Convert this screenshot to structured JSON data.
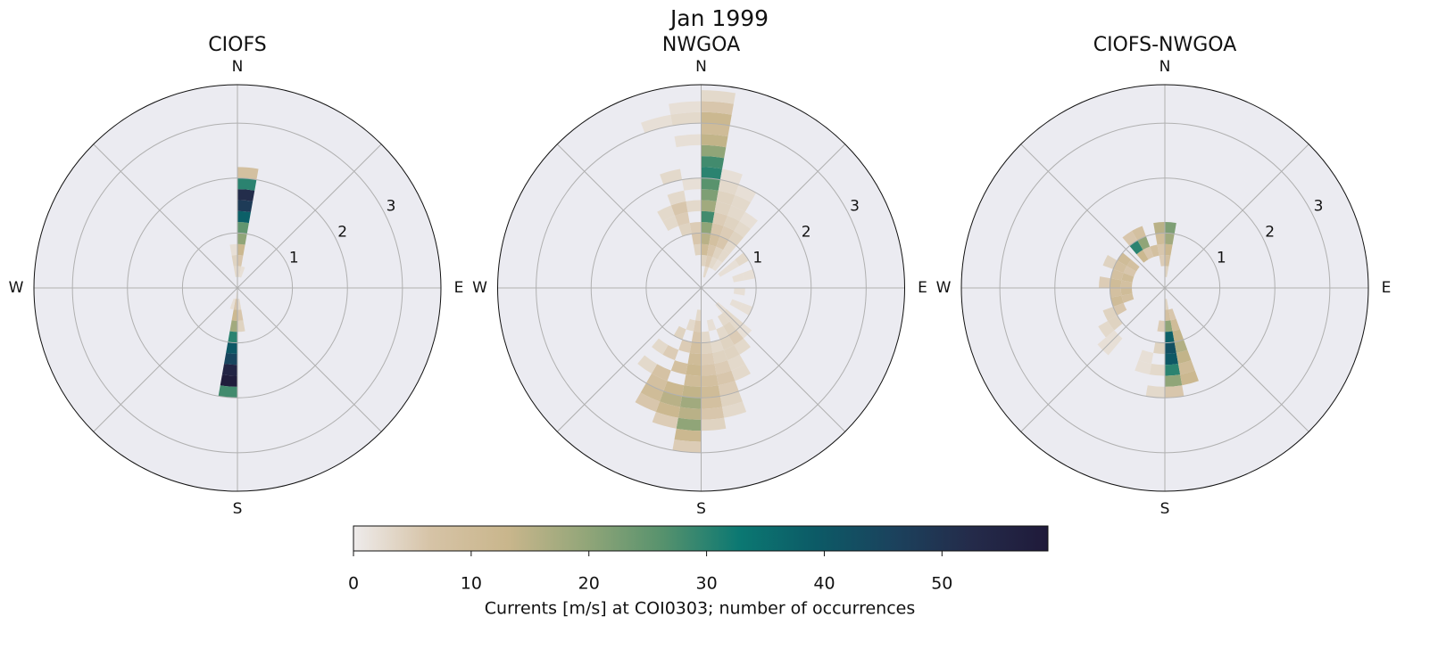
{
  "title": "Jan 1999",
  "chart_data": [
    {
      "type": "polar-histogram",
      "title": "CIOFS",
      "rlim": [
        0,
        3.7
      ],
      "rticks": [
        1,
        2,
        3
      ],
      "thetagrid": [
        0,
        45,
        90,
        135,
        180,
        225,
        270,
        315
      ],
      "thetalabels": [
        {
          "value": 0,
          "label": "N"
        },
        {
          "value": 90,
          "label": "E"
        },
        {
          "value": 180,
          "label": "S"
        },
        {
          "value": 270,
          "label": "W"
        }
      ],
      "direction_bin": 10,
      "speed_bin": 0.2,
      "cells": [
        [
          0,
          0.2,
          3
        ],
        [
          0,
          0.4,
          6
        ],
        [
          0,
          0.6,
          12
        ],
        [
          0,
          0.8,
          20
        ],
        [
          0,
          1.0,
          25
        ],
        [
          0,
          1.2,
          38
        ],
        [
          0,
          1.4,
          48
        ],
        [
          0,
          1.6,
          52
        ],
        [
          0,
          1.8,
          30
        ],
        [
          0,
          2.0,
          8
        ],
        [
          350,
          0.2,
          3
        ],
        [
          350,
          0.4,
          4
        ],
        [
          350,
          0.6,
          2
        ],
        [
          10,
          0.2,
          2
        ],
        [
          180,
          0.0,
          2
        ],
        [
          180,
          0.2,
          6
        ],
        [
          180,
          0.4,
          12
        ],
        [
          180,
          0.6,
          18
        ],
        [
          180,
          0.8,
          30
        ],
        [
          180,
          1.0,
          40
        ],
        [
          180,
          1.2,
          45
        ],
        [
          180,
          1.4,
          55
        ],
        [
          180,
          1.6,
          58
        ],
        [
          180,
          1.8,
          28
        ],
        [
          170,
          0.2,
          3
        ],
        [
          170,
          0.4,
          6
        ],
        [
          170,
          0.6,
          4
        ],
        [
          190,
          0.2,
          2
        ]
      ]
    },
    {
      "type": "polar-histogram",
      "title": "NWGOA",
      "rlim": [
        0,
        3.7
      ],
      "rticks": [
        1,
        2,
        3
      ],
      "thetagrid": [
        0,
        45,
        90,
        135,
        180,
        225,
        270,
        315
      ],
      "thetalabels": [
        {
          "value": 0,
          "label": "N"
        },
        {
          "value": 90,
          "label": "E"
        },
        {
          "value": 180,
          "label": "S"
        },
        {
          "value": 270,
          "label": "W"
        }
      ],
      "direction_bin": 10,
      "speed_bin": 0.2,
      "cells": [
        [
          0,
          0.4,
          4
        ],
        [
          0,
          0.6,
          10
        ],
        [
          0,
          0.8,
          15
        ],
        [
          0,
          1.0,
          20
        ],
        [
          0,
          1.2,
          28
        ],
        [
          0,
          1.4,
          18
        ],
        [
          0,
          1.6,
          22
        ],
        [
          0,
          1.8,
          26
        ],
        [
          0,
          2.0,
          30
        ],
        [
          0,
          2.2,
          28
        ],
        [
          0,
          2.4,
          20
        ],
        [
          0,
          2.6,
          14
        ],
        [
          0,
          2.8,
          10
        ],
        [
          0,
          3.0,
          12
        ],
        [
          0,
          3.2,
          6
        ],
        [
          0,
          3.4,
          3
        ],
        [
          350,
          0.6,
          4
        ],
        [
          350,
          0.8,
          6
        ],
        [
          350,
          1.0,
          5
        ],
        [
          350,
          1.4,
          3
        ],
        [
          350,
          1.8,
          2
        ],
        [
          350,
          2.6,
          2
        ],
        [
          350,
          3.0,
          3
        ],
        [
          350,
          3.2,
          2
        ],
        [
          340,
          1.0,
          4
        ],
        [
          340,
          1.2,
          5
        ],
        [
          340,
          1.4,
          6
        ],
        [
          340,
          1.6,
          3
        ],
        [
          340,
          2.0,
          3
        ],
        [
          340,
          3.0,
          2
        ],
        [
          330,
          1.2,
          3
        ],
        [
          330,
          1.4,
          3
        ],
        [
          10,
          0.2,
          3
        ],
        [
          10,
          0.4,
          5
        ],
        [
          10,
          0.6,
          6
        ],
        [
          10,
          0.8,
          8
        ],
        [
          10,
          1.0,
          6
        ],
        [
          10,
          1.2,
          5
        ],
        [
          10,
          1.4,
          4
        ],
        [
          10,
          1.6,
          4
        ],
        [
          10,
          1.8,
          3
        ],
        [
          10,
          2.0,
          2
        ],
        [
          20,
          0.4,
          3
        ],
        [
          20,
          0.6,
          4
        ],
        [
          20,
          0.8,
          6
        ],
        [
          20,
          1.0,
          5
        ],
        [
          20,
          1.2,
          4
        ],
        [
          20,
          1.4,
          3
        ],
        [
          20,
          1.6,
          3
        ],
        [
          20,
          1.8,
          2
        ],
        [
          30,
          0.4,
          2
        ],
        [
          30,
          0.6,
          3
        ],
        [
          30,
          0.8,
          3
        ],
        [
          30,
          1.0,
          4
        ],
        [
          30,
          1.2,
          3
        ],
        [
          30,
          1.4,
          2
        ],
        [
          50,
          0.4,
          2
        ],
        [
          50,
          0.6,
          2
        ],
        [
          50,
          0.8,
          3
        ],
        [
          70,
          0.6,
          2
        ],
        [
          70,
          0.8,
          2
        ],
        [
          90,
          0.6,
          2
        ],
        [
          110,
          0.6,
          2
        ],
        [
          110,
          0.8,
          2
        ],
        [
          130,
          0.4,
          2
        ],
        [
          130,
          0.6,
          3
        ],
        [
          130,
          0.8,
          3
        ],
        [
          130,
          1.0,
          2
        ],
        [
          140,
          0.6,
          3
        ],
        [
          140,
          0.8,
          4
        ],
        [
          140,
          1.0,
          5
        ],
        [
          140,
          1.2,
          3
        ],
        [
          180,
          0.4,
          3
        ],
        [
          180,
          0.6,
          5
        ],
        [
          180,
          0.8,
          6
        ],
        [
          180,
          1.0,
          8
        ],
        [
          180,
          1.2,
          10
        ],
        [
          180,
          1.4,
          12
        ],
        [
          180,
          1.6,
          10
        ],
        [
          180,
          1.8,
          14
        ],
        [
          180,
          2.0,
          18
        ],
        [
          180,
          2.2,
          15
        ],
        [
          180,
          2.4,
          20
        ],
        [
          180,
          2.6,
          12
        ],
        [
          180,
          2.8,
          5
        ],
        [
          170,
          0.8,
          3
        ],
        [
          170,
          1.0,
          4
        ],
        [
          170,
          1.2,
          5
        ],
        [
          170,
          1.4,
          6
        ],
        [
          170,
          1.6,
          8
        ],
        [
          170,
          1.8,
          10
        ],
        [
          170,
          2.0,
          8
        ],
        [
          170,
          2.2,
          6
        ],
        [
          170,
          2.4,
          4
        ],
        [
          160,
          0.6,
          2
        ],
        [
          160,
          1.0,
          3
        ],
        [
          160,
          1.2,
          4
        ],
        [
          160,
          1.4,
          5
        ],
        [
          160,
          1.6,
          6
        ],
        [
          160,
          1.8,
          5
        ],
        [
          160,
          2.0,
          4
        ],
        [
          160,
          2.2,
          3
        ],
        [
          150,
          0.8,
          3
        ],
        [
          150,
          1.0,
          4
        ],
        [
          150,
          1.2,
          4
        ],
        [
          150,
          1.4,
          3
        ],
        [
          150,
          1.6,
          3
        ],
        [
          190,
          0.6,
          3
        ],
        [
          190,
          1.0,
          5
        ],
        [
          190,
          1.4,
          8
        ],
        [
          190,
          1.8,
          12
        ],
        [
          190,
          2.0,
          15
        ],
        [
          190,
          2.2,
          12
        ],
        [
          190,
          2.4,
          5
        ],
        [
          200,
          0.8,
          4
        ],
        [
          200,
          1.2,
          5
        ],
        [
          200,
          1.6,
          7
        ],
        [
          200,
          1.8,
          8
        ],
        [
          200,
          2.0,
          10
        ],
        [
          200,
          2.2,
          6
        ],
        [
          210,
          1.2,
          3
        ],
        [
          210,
          1.6,
          3
        ]
      ]
    },
    {
      "type": "polar-histogram",
      "title": "CIOFS-NWGOA",
      "rlim": [
        0,
        3.7
      ],
      "rticks": [
        1,
        2,
        3
      ],
      "thetagrid": [
        0,
        45,
        90,
        135,
        180,
        225,
        270,
        315
      ],
      "thetalabels": [
        {
          "value": 0,
          "label": "N"
        },
        {
          "value": 90,
          "label": "E"
        },
        {
          "value": 180,
          "label": "S"
        },
        {
          "value": 270,
          "label": "W"
        }
      ],
      "direction_bin": 10,
      "speed_bin": 0.2,
      "cells": [
        [
          0,
          0.2,
          4
        ],
        [
          0,
          0.4,
          8
        ],
        [
          0,
          0.6,
          12
        ],
        [
          0,
          0.8,
          18
        ],
        [
          0,
          1.0,
          22
        ],
        [
          350,
          0.4,
          5
        ],
        [
          350,
          0.6,
          6
        ],
        [
          350,
          0.8,
          10
        ],
        [
          350,
          1.0,
          15
        ],
        [
          340,
          0.6,
          8
        ],
        [
          330,
          0.6,
          6
        ],
        [
          330,
          0.8,
          20
        ],
        [
          330,
          1.0,
          8
        ],
        [
          320,
          0.6,
          12
        ],
        [
          320,
          0.8,
          30
        ],
        [
          320,
          1.0,
          6
        ],
        [
          300,
          0.6,
          8
        ],
        [
          300,
          0.8,
          10
        ],
        [
          290,
          0.6,
          6
        ],
        [
          290,
          0.8,
          8
        ],
        [
          290,
          1.0,
          4
        ],
        [
          280,
          0.6,
          10
        ],
        [
          280,
          0.8,
          8
        ],
        [
          270,
          0.6,
          8
        ],
        [
          270,
          0.8,
          10
        ],
        [
          270,
          1.0,
          5
        ],
        [
          260,
          0.6,
          10
        ],
        [
          260,
          0.8,
          8
        ],
        [
          250,
          0.6,
          8
        ],
        [
          250,
          0.8,
          10
        ],
        [
          240,
          0.8,
          6
        ],
        [
          240,
          1.0,
          4
        ],
        [
          230,
          1.0,
          4
        ],
        [
          230,
          1.2,
          3
        ],
        [
          220,
          1.2,
          2
        ],
        [
          220,
          1.4,
          2
        ],
        [
          170,
          0.2,
          4
        ],
        [
          170,
          0.4,
          8
        ],
        [
          170,
          0.6,
          20
        ],
        [
          170,
          0.8,
          38
        ],
        [
          170,
          1.0,
          42
        ],
        [
          170,
          1.2,
          40
        ],
        [
          170,
          1.4,
          30
        ],
        [
          170,
          1.6,
          20
        ],
        [
          170,
          1.8,
          6
        ],
        [
          160,
          0.4,
          6
        ],
        [
          160,
          0.6,
          10
        ],
        [
          160,
          0.8,
          14
        ],
        [
          160,
          1.0,
          16
        ],
        [
          160,
          1.2,
          14
        ],
        [
          160,
          1.4,
          10
        ],
        [
          160,
          1.6,
          12
        ],
        [
          180,
          0.6,
          5
        ],
        [
          180,
          1.0,
          4
        ],
        [
          180,
          1.4,
          3
        ],
        [
          180,
          1.8,
          3
        ],
        [
          190,
          1.2,
          2
        ],
        [
          190,
          1.4,
          2
        ]
      ]
    }
  ],
  "colorbar": {
    "label": "Currents [m/s] at COI0303; number of occurrences",
    "lim": [
      0,
      59
    ],
    "ticks": [
      0,
      10,
      20,
      30,
      40,
      50
    ],
    "colors": [
      "#eeebeb",
      "#d6c3a6",
      "#c9b68c",
      "#93a679",
      "#57926d",
      "#0b7872",
      "#0c5a66",
      "#1b425d",
      "#242b4a",
      "#1f1a3a"
    ]
  }
}
